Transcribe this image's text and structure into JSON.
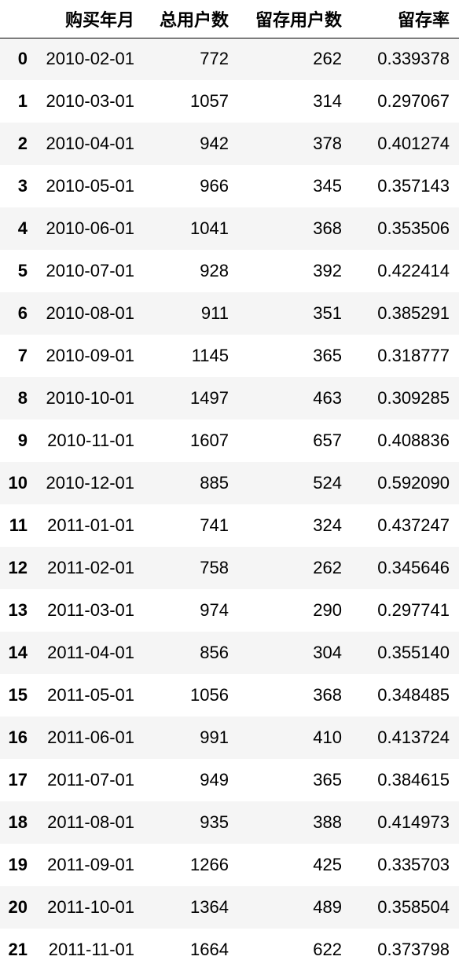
{
  "table": {
    "columns": [
      "",
      "购买年月",
      "总用户数",
      "留存用户数",
      "留存率"
    ],
    "rows": [
      [
        "0",
        "2010-02-01",
        "772",
        "262",
        "0.339378"
      ],
      [
        "1",
        "2010-03-01",
        "1057",
        "314",
        "0.297067"
      ],
      [
        "2",
        "2010-04-01",
        "942",
        "378",
        "0.401274"
      ],
      [
        "3",
        "2010-05-01",
        "966",
        "345",
        "0.357143"
      ],
      [
        "4",
        "2010-06-01",
        "1041",
        "368",
        "0.353506"
      ],
      [
        "5",
        "2010-07-01",
        "928",
        "392",
        "0.422414"
      ],
      [
        "6",
        "2010-08-01",
        "911",
        "351",
        "0.385291"
      ],
      [
        "7",
        "2010-09-01",
        "1145",
        "365",
        "0.318777"
      ],
      [
        "8",
        "2010-10-01",
        "1497",
        "463",
        "0.309285"
      ],
      [
        "9",
        "2010-11-01",
        "1607",
        "657",
        "0.408836"
      ],
      [
        "10",
        "2010-12-01",
        "885",
        "524",
        "0.592090"
      ],
      [
        "11",
        "2011-01-01",
        "741",
        "324",
        "0.437247"
      ],
      [
        "12",
        "2011-02-01",
        "758",
        "262",
        "0.345646"
      ],
      [
        "13",
        "2011-03-01",
        "974",
        "290",
        "0.297741"
      ],
      [
        "14",
        "2011-04-01",
        "856",
        "304",
        "0.355140"
      ],
      [
        "15",
        "2011-05-01",
        "1056",
        "368",
        "0.348485"
      ],
      [
        "16",
        "2011-06-01",
        "991",
        "410",
        "0.413724"
      ],
      [
        "17",
        "2011-07-01",
        "949",
        "365",
        "0.384615"
      ],
      [
        "18",
        "2011-08-01",
        "935",
        "388",
        "0.414973"
      ],
      [
        "19",
        "2011-09-01",
        "1266",
        "425",
        "0.335703"
      ],
      [
        "20",
        "2011-10-01",
        "1364",
        "489",
        "0.358504"
      ],
      [
        "21",
        "2011-11-01",
        "1664",
        "622",
        "0.373798"
      ]
    ]
  }
}
